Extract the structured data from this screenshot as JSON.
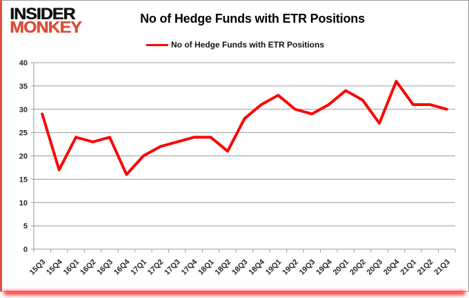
{
  "logo": {
    "line1": "INSIDER",
    "line2": "MONKEY"
  },
  "header": {
    "title": "No of Hedge Funds with ETR Positions"
  },
  "legend": {
    "label": "No of Hedge Funds with ETR Positions"
  },
  "colors": {
    "line": "#ff0000",
    "logo_black": "#111111",
    "logo_red": "#d8503a",
    "grid": "#9a9a9a",
    "axis_text": "#262626",
    "border_left": "#e2503c",
    "bottom_glow": "#ff0000"
  },
  "chart_data": {
    "type": "line",
    "title": "No of Hedge Funds with ETR Positions",
    "categories": [
      "15Q3",
      "15Q4",
      "16Q1",
      "16Q2",
      "16Q3",
      "16Q4",
      "17Q1",
      "17Q2",
      "17Q3",
      "17Q4",
      "18Q1",
      "18Q2",
      "18Q3",
      "18Q4",
      "19Q1",
      "19Q2",
      "19Q3",
      "19Q4",
      "20Q1",
      "20Q2",
      "20Q3",
      "20Q4",
      "21Q1",
      "21Q2",
      "21Q3"
    ],
    "series": [
      {
        "name": "No of Hedge Funds with ETR Positions",
        "color": "#ff0000",
        "values": [
          29,
          17,
          24,
          23,
          24,
          16,
          20,
          22,
          23,
          24,
          24,
          21,
          28,
          31,
          33,
          30,
          29,
          31,
          34,
          32,
          27,
          36,
          31,
          31,
          30
        ]
      }
    ],
    "xlabel": "",
    "ylabel": "",
    "ylim": [
      0,
      40
    ],
    "ytick_step": 5,
    "yticks": [
      0,
      5,
      10,
      15,
      20,
      25,
      30,
      35,
      40
    ],
    "grid": "horizontal",
    "legend_position": "top-center"
  }
}
